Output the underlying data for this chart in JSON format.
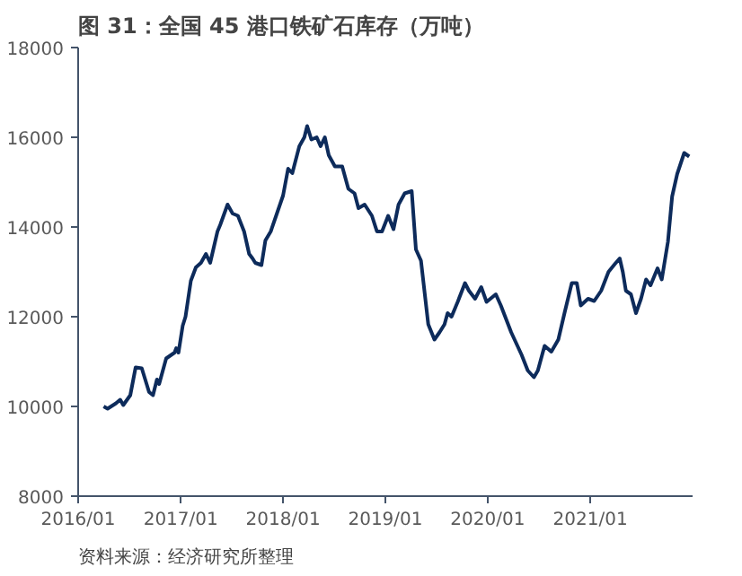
{
  "chart_data": {
    "type": "line",
    "title": "图 31：全国 45 港口铁矿石库存（万吨）",
    "annotations": [
      "资料来源：经济研究所整理"
    ],
    "x": [
      "2016-04-01",
      "2016-04-15",
      "2016-05-15",
      "2016-05-30",
      "2016-06-10",
      "2016-07-05",
      "2016-07-24",
      "2016-08-15",
      "2016-09-10",
      "2016-09-24",
      "2016-10-08",
      "2016-10-16",
      "2016-11-10",
      "2016-12-10",
      "2016-12-16",
      "2016-12-24",
      "2017-01-08",
      "2017-01-18",
      "2017-02-06",
      "2017-02-24",
      "2017-03-14",
      "2017-04-01",
      "2017-04-16",
      "2017-05-12",
      "2017-05-22",
      "2017-06-17",
      "2017-07-05",
      "2017-07-24",
      "2017-08-15",
      "2017-09-02",
      "2017-09-14",
      "2017-09-24",
      "2017-10-16",
      "2017-10-30",
      "2017-11-18",
      "2017-12-10",
      "2018-01-01",
      "2018-01-19",
      "2018-02-03",
      "2018-02-28",
      "2018-03-18",
      "2018-03-28",
      "2018-04-12",
      "2018-05-01",
      "2018-05-15",
      "2018-05-30",
      "2018-06-13",
      "2018-07-05",
      "2018-07-31",
      "2018-08-22",
      "2018-09-13",
      "2018-09-27",
      "2018-10-19",
      "2018-11-14",
      "2018-12-02",
      "2018-12-20",
      "2019-01-11",
      "2019-01-30",
      "2019-02-17",
      "2019-03-11",
      "2019-04-05",
      "2019-04-20",
      "2019-05-08",
      "2019-06-03",
      "2019-06-25",
      "2019-07-13",
      "2019-07-31",
      "2019-08-11",
      "2019-08-25",
      "2019-09-16",
      "2019-10-12",
      "2019-10-26",
      "2019-11-17",
      "2019-12-09",
      "2019-12-28",
      "2020-01-30",
      "2020-02-17",
      "2020-03-25",
      "2020-05-01",
      "2020-05-23",
      "2020-06-14",
      "2020-06-28",
      "2020-07-22",
      "2020-08-15",
      "2020-09-09",
      "2020-10-01",
      "2020-10-27",
      "2020-11-14",
      "2020-11-28",
      "2020-12-24",
      "2021-01-15",
      "2021-02-09",
      "2021-03-07",
      "2021-03-29",
      "2021-04-16",
      "2021-04-27",
      "2021-05-08",
      "2021-05-26",
      "2021-06-13",
      "2021-07-01",
      "2021-07-19",
      "2021-08-04",
      "2021-08-29",
      "2021-09-13",
      "2021-10-05",
      "2021-10-20",
      "2021-11-07",
      "2021-12-02",
      "2021-12-20"
    ],
    "series": [
      {
        "color": "#0d2b5b",
        "values": [
          10000,
          9950,
          10070,
          10150,
          10030,
          10250,
          10870,
          10850,
          10320,
          10250,
          10600,
          10500,
          11070,
          11200,
          11300,
          11200,
          11800,
          12000,
          12800,
          13100,
          13200,
          13400,
          13200,
          13900,
          14050,
          14500,
          14300,
          14250,
          13900,
          13400,
          13300,
          13200,
          13150,
          13700,
          13900,
          14300,
          14700,
          15300,
          15200,
          15800,
          16000,
          16250,
          15950,
          16000,
          15800,
          16000,
          15600,
          15350,
          15350,
          14850,
          14750,
          14420,
          14500,
          14250,
          13900,
          13900,
          14250,
          13950,
          14500,
          14750,
          14800,
          13500,
          13250,
          11830,
          11490,
          11650,
          11830,
          12080,
          12000,
          12330,
          12750,
          12580,
          12400,
          12660,
          12330,
          12500,
          12250,
          11650,
          11150,
          10800,
          10650,
          10800,
          11350,
          11220,
          11490,
          12080,
          12750,
          12750,
          12250,
          12400,
          12350,
          12580,
          13000,
          13170,
          13300,
          13000,
          12580,
          12500,
          12080,
          12400,
          12830,
          12700,
          13080,
          12830,
          13670,
          14680,
          15180,
          15650,
          15570
        ]
      }
    ],
    "xlim": [
      "2016-01-01",
      "2022-01-01"
    ],
    "xticks": [
      {
        "value": "2016-01-01",
        "label": "2016/01"
      },
      {
        "value": "2017-01-01",
        "label": "2017/01"
      },
      {
        "value": "2018-01-01",
        "label": "2018/01"
      },
      {
        "value": "2019-01-01",
        "label": "2019/01"
      },
      {
        "value": "2020-01-01",
        "label": "2020/01"
      },
      {
        "value": "2021-01-01",
        "label": "2021/01"
      }
    ],
    "ylim": [
      8000,
      18000
    ],
    "yticks": [
      8000,
      10000,
      12000,
      14000,
      16000,
      18000
    ],
    "grid": false,
    "marker": "none",
    "line_style": "solid"
  }
}
